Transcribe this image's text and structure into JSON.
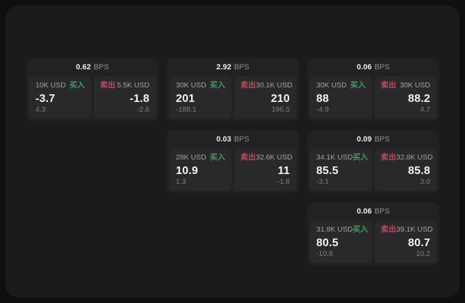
{
  "labels": {
    "bps": "BPS",
    "buy": "买入",
    "sell": "卖出"
  },
  "colors": {
    "buy_accent": "#3f9e5f",
    "sell_accent": "#c04a5e",
    "panel_background": "#1b1b1d",
    "card_background": "#222224",
    "tile_background": "#29292b"
  },
  "cards": [
    {
      "bps": "0.62",
      "buy": {
        "amount": "10K USD",
        "price": "-3.7",
        "delta": "4.3"
      },
      "sell": {
        "amount": "5.5K USD",
        "price": "-1.8",
        "delta": "-2.6"
      }
    },
    {
      "bps": "2.92",
      "buy": {
        "amount": "30K USD",
        "price": "201",
        "delta": "-188.1"
      },
      "sell": {
        "amount": "30.1K USD",
        "price": "210",
        "delta": "196.5"
      }
    },
    {
      "bps": "0.06",
      "buy": {
        "amount": "30K USD",
        "price": "88",
        "delta": "-4.9"
      },
      "sell": {
        "amount": "30K USD",
        "price": "88.2",
        "delta": "4.7"
      }
    },
    {
      "bps": "0.03",
      "buy": {
        "amount": "28K USD",
        "price": "10.9",
        "delta": "1.3"
      },
      "sell": {
        "amount": "32.6K USD",
        "price": "11",
        "delta": "-1.8"
      }
    },
    {
      "bps": "0.09",
      "buy": {
        "amount": "34.1K USD",
        "price": "85.5",
        "delta": "-3.1"
      },
      "sell": {
        "amount": "32.8K USD",
        "price": "85.8",
        "delta": "3.0"
      }
    },
    {
      "bps": "0.06",
      "buy": {
        "amount": "31.8K USD",
        "price": "80.5",
        "delta": "-10.8"
      },
      "sell": {
        "amount": "39.1K USD",
        "price": "80.7",
        "delta": "10.2"
      }
    }
  ]
}
